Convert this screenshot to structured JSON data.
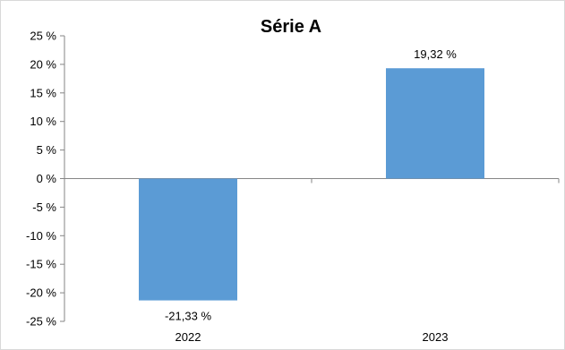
{
  "chart_data": {
    "type": "bar",
    "title": "Série A",
    "categories": [
      "2022",
      "2023"
    ],
    "values": [
      -21.33,
      19.32
    ],
    "data_labels": [
      "-21,33 %",
      "19,32 %"
    ],
    "ylim": [
      -25,
      25
    ],
    "y_ticks": [
      25,
      20,
      15,
      10,
      5,
      0,
      -5,
      -10,
      -15,
      -20,
      -25
    ],
    "y_tick_labels": [
      "25 %",
      "20 %",
      "15 %",
      "10 %",
      "5 %",
      "0 %",
      "-5 %",
      "-10 %",
      "-15 %",
      "-20 %",
      "-25 %"
    ],
    "xlabel": "",
    "ylabel": "",
    "grid": false,
    "legend": "none",
    "bar_color": "#5B9BD5"
  }
}
